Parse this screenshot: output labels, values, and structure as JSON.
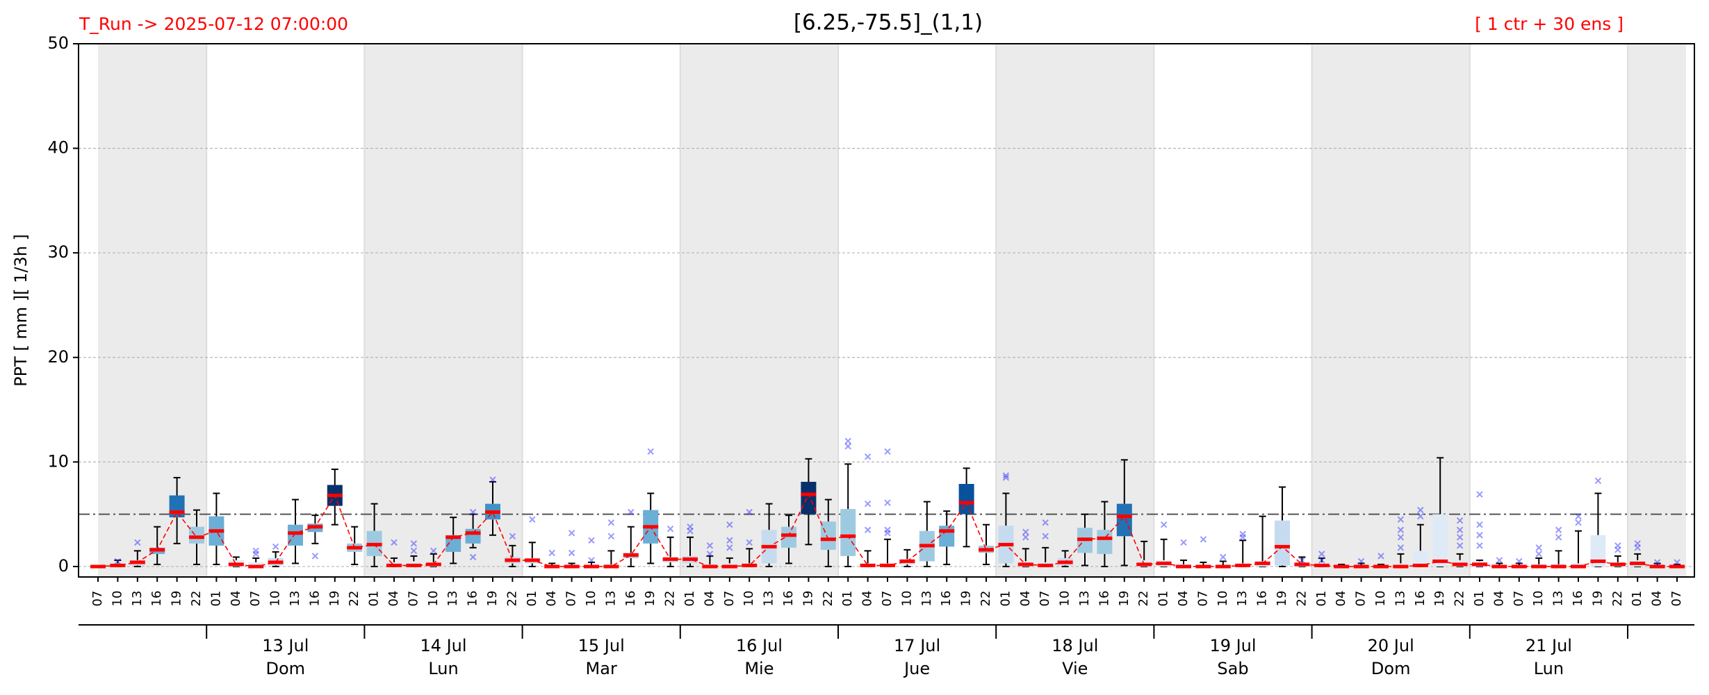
{
  "chart_data": {
    "type": "box",
    "title": "[6.25,-75.5]_(1,1)",
    "subtitle_left": "T_Run -> 2025-07-12  07:00:00",
    "subtitle_right": "[ 1 ctr + 30 ens ]",
    "y_label": "PPT  [ mm ][ 1/3h ]",
    "ylim": [
      -1,
      50
    ],
    "yticks": [
      0,
      10,
      20,
      30,
      40,
      50
    ],
    "grid": true,
    "threshold": 5,
    "median_color": "#ff0000",
    "outlier_color": "#3333ff",
    "days": [
      {
        "date": null,
        "weekday": null,
        "hours": [
          "07",
          "10",
          "13",
          "16",
          "19",
          "22"
        ]
      },
      {
        "date": "13 Jul",
        "weekday": "Dom",
        "hours": [
          "01",
          "04",
          "07",
          "10",
          "13",
          "16",
          "19",
          "22"
        ]
      },
      {
        "date": "14 Jul",
        "weekday": "Lun",
        "hours": [
          "01",
          "04",
          "07",
          "10",
          "13",
          "16",
          "19",
          "22"
        ]
      },
      {
        "date": "15 Jul",
        "weekday": "Mar",
        "hours": [
          "01",
          "04",
          "07",
          "10",
          "13",
          "16",
          "19",
          "22"
        ]
      },
      {
        "date": "16 Jul",
        "weekday": "Mie",
        "hours": [
          "01",
          "04",
          "07",
          "10",
          "13",
          "16",
          "19",
          "22"
        ]
      },
      {
        "date": "17 Jul",
        "weekday": "Jue",
        "hours": [
          "01",
          "04",
          "07",
          "10",
          "13",
          "16",
          "19",
          "22"
        ]
      },
      {
        "date": "18 Jul",
        "weekday": "Vie",
        "hours": [
          "01",
          "04",
          "07",
          "10",
          "13",
          "16",
          "19",
          "22"
        ]
      },
      {
        "date": "19 Jul",
        "weekday": "Sab",
        "hours": [
          "01",
          "04",
          "07",
          "10",
          "13",
          "16",
          "19",
          "22"
        ]
      },
      {
        "date": "20 Jul",
        "weekday": "Dom",
        "hours": [
          "01",
          "04",
          "07",
          "10",
          "13",
          "16",
          "19",
          "22"
        ]
      },
      {
        "date": "21 Jul",
        "weekday": "Lun",
        "hours": [
          "01",
          "04",
          "07",
          "10",
          "13",
          "16",
          "19",
          "22"
        ]
      },
      {
        "date": null,
        "weekday": null,
        "hours": [
          "01",
          "04",
          "07"
        ]
      }
    ],
    "median": [
      0,
      0.1,
      0.4,
      1.6,
      5.2,
      2.8,
      3.4,
      0.2,
      0,
      0.4,
      3.2,
      3.8,
      6.8,
      1.8,
      2.1,
      0.1,
      0.1,
      0.2,
      2.8,
      3.2,
      5.2,
      0.6,
      0.6,
      0,
      0,
      0,
      0,
      1.1,
      3.8,
      0.7,
      0.7,
      0,
      0,
      0.1,
      1.9,
      3.0,
      6.9,
      2.6,
      2.9,
      0.1,
      0.1,
      0.5,
      2.0,
      3.4,
      6.1,
      1.6,
      2.1,
      0.2,
      0.1,
      0.4,
      2.6,
      2.7,
      4.8,
      0.2,
      0.3,
      0,
      0,
      0,
      0.1,
      0.3,
      1.9,
      0.2,
      0.1,
      0,
      0,
      0,
      0,
      0.1,
      0.5,
      0.2,
      0.2,
      0,
      0,
      0,
      0,
      0,
      0.5,
      0.2,
      0.3,
      0,
      0
    ],
    "q1": [
      0,
      0,
      0.1,
      1.2,
      4.7,
      2.2,
      2.0,
      0,
      0,
      0.1,
      2.0,
      3.3,
      5.8,
      1.4,
      1.0,
      0,
      0,
      0,
      1.4,
      2.2,
      4.5,
      0.3,
      0.3,
      0,
      0,
      0,
      0,
      0.8,
      2.2,
      0.4,
      0.3,
      0,
      0,
      0,
      0.3,
      1.8,
      5.0,
      1.6,
      1.0,
      0,
      0,
      0.2,
      0.5,
      1.9,
      5.0,
      1.3,
      0.3,
      0,
      0,
      0.1,
      1.3,
      1.2,
      2.9,
      0,
      0,
      0,
      0,
      0,
      0,
      0,
      0.1,
      0,
      0,
      0,
      0,
      0,
      0,
      0,
      0,
      0,
      0,
      0,
      0,
      0,
      0,
      0,
      0,
      0,
      0,
      0,
      0
    ],
    "q3": [
      0,
      0.3,
      0.6,
      1.8,
      6.8,
      3.8,
      4.8,
      0.6,
      0.4,
      0.8,
      4.0,
      4.1,
      7.8,
      2.2,
      3.4,
      0.4,
      0.5,
      0.4,
      3.0,
      3.6,
      6.0,
      0.9,
      0.8,
      0.1,
      0.1,
      0.1,
      0.2,
      1.3,
      5.4,
      0.9,
      1.0,
      0.2,
      0.3,
      0.3,
      3.5,
      3.8,
      8.1,
      4.3,
      5.5,
      0.3,
      0.3,
      0.7,
      3.4,
      3.9,
      7.9,
      2.0,
      3.9,
      0.5,
      0.4,
      0.8,
      3.7,
      3.5,
      6.0,
      0.6,
      0.6,
      0.2,
      0.1,
      0.1,
      0.3,
      0.5,
      4.4,
      0.4,
      0.4,
      0.1,
      0.1,
      0.1,
      0.3,
      1.5,
      5.0,
      0.6,
      0.5,
      0.1,
      0.1,
      0.2,
      0.2,
      0.3,
      3.0,
      0.4,
      0.6,
      0.1,
      0.1
    ],
    "whisker_low": [
      0,
      0,
      0,
      0.2,
      2.2,
      0.2,
      0.2,
      0,
      0,
      0,
      0.3,
      2.2,
      4.0,
      0.2,
      0,
      0,
      0,
      0,
      0.3,
      1.8,
      3.0,
      0,
      0,
      0,
      0,
      0,
      0,
      0,
      0.3,
      0,
      0,
      0,
      0,
      0,
      0,
      0.3,
      2.1,
      0,
      0,
      0,
      0,
      0,
      0,
      0.2,
      1.9,
      0.2,
      0,
      0,
      0,
      0,
      0.1,
      0,
      0.1,
      0,
      0,
      0,
      0,
      0,
      0,
      0,
      0,
      0,
      0,
      0,
      0,
      0,
      0,
      0,
      0,
      0,
      0,
      0,
      0,
      0,
      0,
      0,
      0,
      0,
      0,
      0,
      0
    ],
    "whisker_high": [
      0,
      0.6,
      1.5,
      3.8,
      8.5,
      5.4,
      7.0,
      0.9,
      0.8,
      1.4,
      6.4,
      4.9,
      9.3,
      3.8,
      6.0,
      0.8,
      1.0,
      1.2,
      4.7,
      5.0,
      8.1,
      2.0,
      2.3,
      0.3,
      0.3,
      0.4,
      1.5,
      3.8,
      7.0,
      2.8,
      2.8,
      1.0,
      0.8,
      1.7,
      6.0,
      4.9,
      10.3,
      6.4,
      9.8,
      1.5,
      2.6,
      1.6,
      6.2,
      5.3,
      9.4,
      4.0,
      7.0,
      1.7,
      1.8,
      1.5,
      5.0,
      6.2,
      10.2,
      2.4,
      2.6,
      0.6,
      0.4,
      0.5,
      2.5,
      4.8,
      7.6,
      0.9,
      0.8,
      0.2,
      0.3,
      0.2,
      1.2,
      4.0,
      10.4,
      1.2,
      0.6,
      0.3,
      0.3,
      0.8,
      1.5,
      3.4,
      7.0,
      1.0,
      1.2,
      0.3,
      0.2
    ],
    "outliers": [
      [],
      [
        0.5
      ],
      [
        2.3
      ],
      [],
      [],
      [],
      [],
      [],
      [
        1.2,
        1.5
      ],
      [
        1.9
      ],
      [],
      [
        1.0
      ],
      [],
      [],
      [],
      [
        2.3
      ],
      [
        1.5,
        2.2
      ],
      [
        1.5
      ],
      [],
      [
        5.2,
        0.9
      ],
      [
        8.3
      ],
      [
        2.9
      ],
      [
        4.5
      ],
      [
        1.3
      ],
      [
        1.3,
        3.2
      ],
      [
        2.5,
        0.6
      ],
      [
        2.9,
        4.2
      ],
      [
        5.2
      ],
      [
        11.0
      ],
      [
        3.6
      ],
      [
        3.8,
        3.4
      ],
      [
        2.0,
        1.2
      ],
      [
        2.5,
        1.8,
        4.0
      ],
      [
        2.3,
        5.2
      ],
      [],
      [],
      [],
      [],
      [
        11.5,
        12.0
      ],
      [
        10.5,
        6.0,
        3.5
      ],
      [
        11.0,
        6.1,
        3.5,
        3.2
      ],
      [],
      [],
      [],
      [],
      [],
      [
        8.5,
        8.7
      ],
      [
        2.8,
        3.3
      ],
      [
        2.9,
        4.2
      ],
      [],
      [],
      [],
      [],
      [],
      [
        4.0
      ],
      [
        2.3
      ],
      [
        2.6
      ],
      [
        0.9
      ],
      [
        3.1,
        2.8
      ],
      [],
      [],
      [
        0.6
      ],
      [
        1.2,
        0.6
      ],
      [],
      [
        0.5
      ],
      [
        1.0
      ],
      [
        1.8,
        2.8,
        3.5,
        4.5
      ],
      [
        5.4,
        4.8
      ],
      [],
      [
        4.4,
        3.5,
        2.8,
        2.0
      ],
      [
        6.9,
        4.0,
        3.0,
        2.0
      ],
      [
        0.6
      ],
      [
        0.5
      ],
      [
        1.2,
        1.8
      ],
      [
        2.8,
        3.5
      ],
      [
        4.8,
        4.2
      ],
      [
        8.2
      ],
      [
        2.0,
        1.6
      ],
      [
        2.2,
        1.8
      ],
      [
        0.4
      ],
      [
        0.4
      ]
    ],
    "box_colors": [
      "#deebf7",
      "#deebf7",
      "#c6dbef",
      "#6baed6",
      "#2171b5",
      "#9ecae1",
      "#6baed6",
      "#deebf7",
      "#deebf7",
      "#c6dbef",
      "#6baed6",
      "#6baed6",
      "#08306b",
      "#9ecae1",
      "#9ecae1",
      "#deebf7",
      "#deebf7",
      "#deebf7",
      "#6baed6",
      "#6baed6",
      "#4292c6",
      "#c6dbef",
      "#c6dbef",
      "#deebf7",
      "#deebf7",
      "#deebf7",
      "#deebf7",
      "#9ecae1",
      "#6baed6",
      "#c6dbef",
      "#c6dbef",
      "#deebf7",
      "#deebf7",
      "#deebf7",
      "#c6dbef",
      "#9ecae1",
      "#08306b",
      "#9ecae1",
      "#9ecae1",
      "#deebf7",
      "#deebf7",
      "#c6dbef",
      "#9ecae1",
      "#6baed6",
      "#08519c",
      "#9ecae1",
      "#c6dbef",
      "#deebf7",
      "#deebf7",
      "#c6dbef",
      "#9ecae1",
      "#9ecae1",
      "#2171b5",
      "#deebf7",
      "#deebf7",
      "#deebf7",
      "#deebf7",
      "#deebf7",
      "#deebf7",
      "#deebf7",
      "#c6dbef",
      "#deebf7",
      "#deebf7",
      "#deebf7",
      "#deebf7",
      "#deebf7",
      "#deebf7",
      "#deebf7",
      "#deebf7",
      "#deebf7",
      "#deebf7",
      "#deebf7",
      "#deebf7",
      "#deebf7",
      "#deebf7",
      "#deebf7",
      "#deebf7",
      "#deebf7",
      "#deebf7",
      "#deebf7",
      "#deebf7"
    ]
  }
}
